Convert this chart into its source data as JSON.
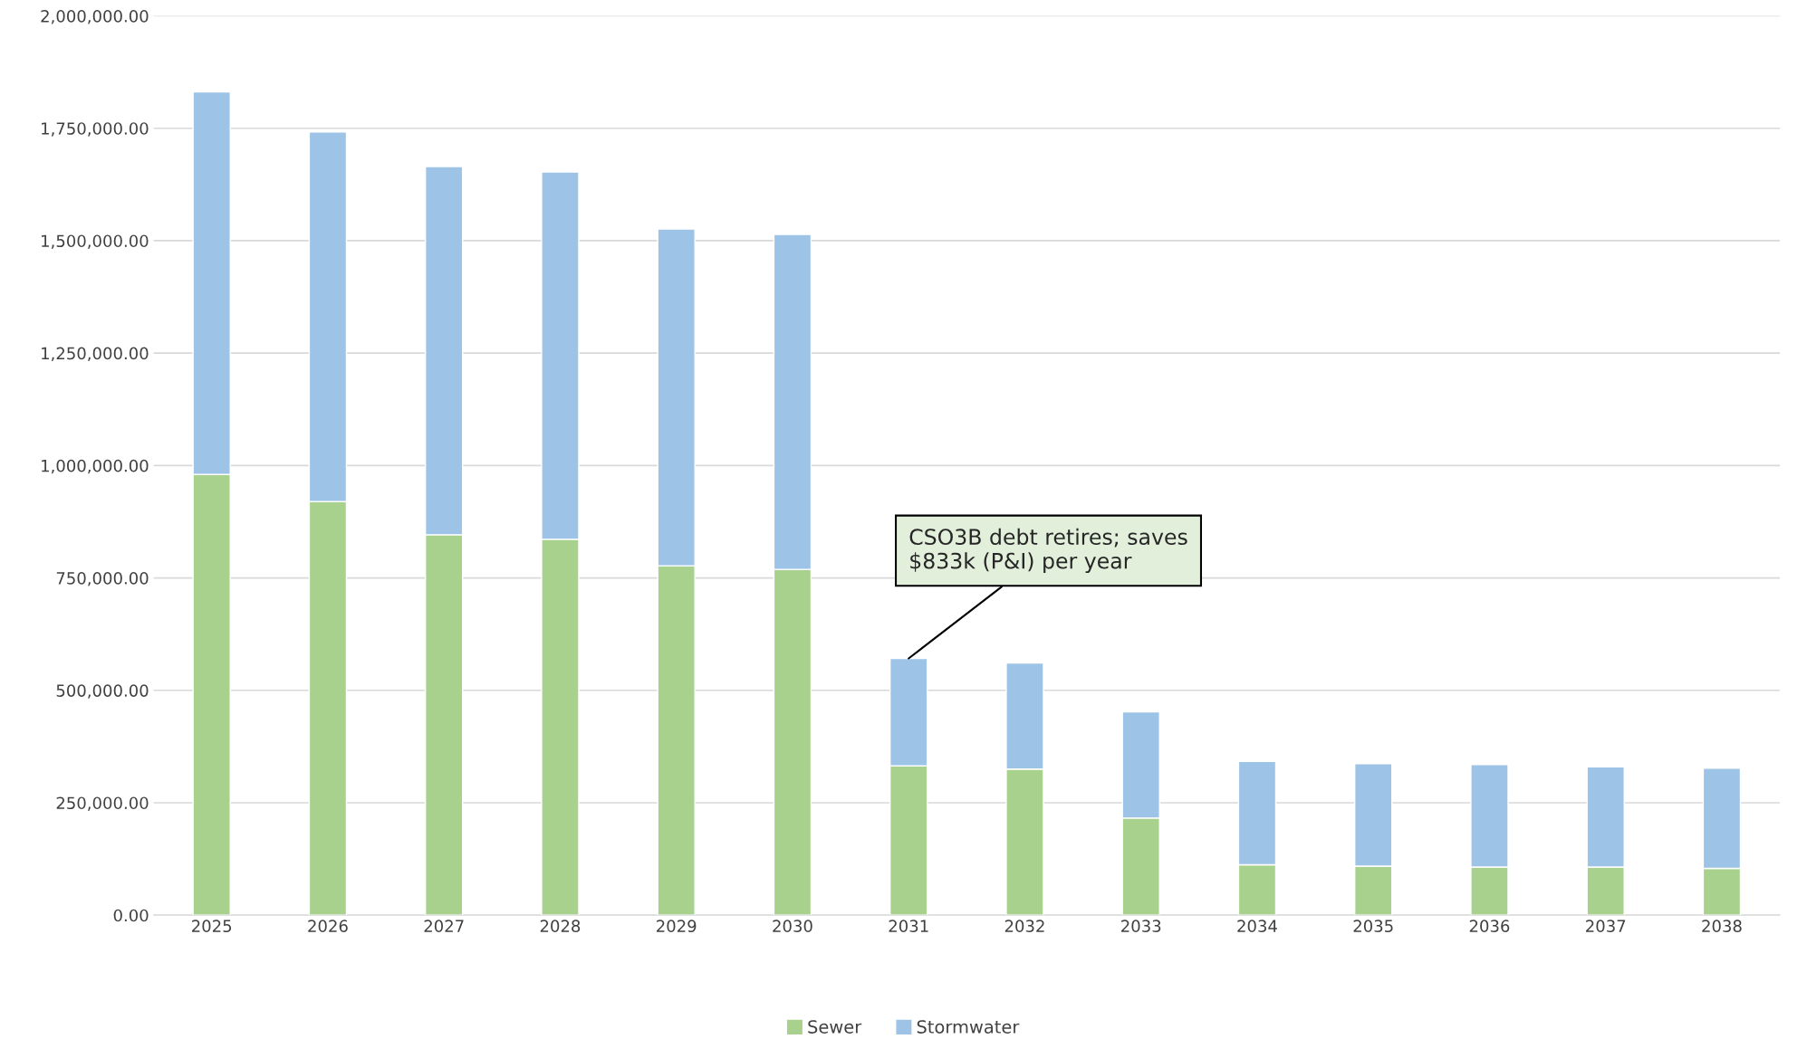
{
  "chart_data": {
    "type": "bar",
    "stacked": true,
    "grid": "y",
    "legend": "bottom",
    "categories": [
      "2025",
      "2026",
      "2027",
      "2028",
      "2029",
      "2030",
      "2031",
      "2032",
      "2033",
      "2034",
      "2035",
      "2036",
      "2037",
      "2038"
    ],
    "series": [
      {
        "name": "Sewer",
        "color": "#a9d18e",
        "values": [
          980000,
          920000,
          846000,
          836000,
          777000,
          769000,
          332000,
          325000,
          216000,
          112000,
          109000,
          107000,
          107000,
          104000
        ]
      },
      {
        "name": "Stormwater",
        "color": "#9dc3e6",
        "values": [
          851000,
          822000,
          819000,
          817000,
          749000,
          745000,
          239000,
          236000,
          236000,
          230000,
          228000,
          228000,
          223000,
          223000
        ]
      }
    ],
    "ylim": [
      0,
      2000000
    ],
    "yticks": [
      {
        "value": 0,
        "label": "0.00"
      },
      {
        "value": 250000,
        "label": "250,000.00"
      },
      {
        "value": 500000,
        "label": "500,000.00"
      },
      {
        "value": 750000,
        "label": "750,000.00"
      },
      {
        "value": 1000000,
        "label": "1,000,000.00"
      },
      {
        "value": 1250000,
        "label": "1,250,000.00"
      },
      {
        "value": 1500000,
        "label": "1,500,000.00"
      },
      {
        "value": 1750000,
        "label": "1,750,000.00"
      },
      {
        "value": 2000000,
        "label": "2,000,000.00"
      }
    ],
    "annotations": [
      {
        "text": "CSO3B debt retires; saves\n$833k (P&I) per year",
        "x": "2031",
        "y": 571000
      }
    ]
  }
}
